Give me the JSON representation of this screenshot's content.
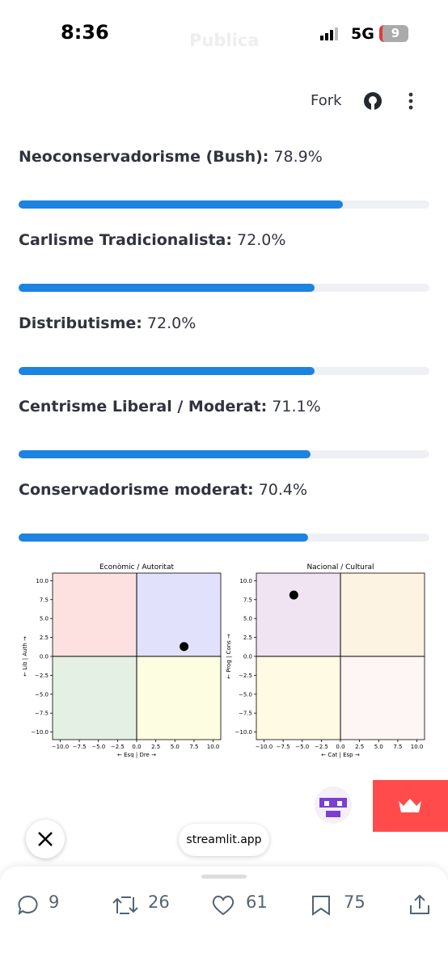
{
  "status_bar": {
    "time": "8:36",
    "network": "5G",
    "battery": "9"
  },
  "header": {
    "title": "Publica",
    "fork": "Fork"
  },
  "results": [
    {
      "name": "Neoconservadorisme (Bush):",
      "value": 78.9,
      "value_label": "78.9%"
    },
    {
      "name": "Carlisme Tradicionalista:",
      "value": 72.0,
      "value_label": "72.0%"
    },
    {
      "name": "Distributisme:",
      "value": 72.0,
      "value_label": "72.0%"
    },
    {
      "name": "Centrisme Liberal / Moderat:",
      "value": 71.1,
      "value_label": "71.1%"
    },
    {
      "name": "Conservadorisme moderat:",
      "value": 70.4,
      "value_label": "70.4%"
    }
  ],
  "progress_max": 100,
  "chart_data": [
    {
      "type": "scatter",
      "title": "Econòmic / Autoritat",
      "xlabel": "← Esq | Dre →",
      "ylabel": "← Lib | Auth →",
      "x": [
        6.2
      ],
      "values": [
        1.3
      ],
      "color": "#000000",
      "quadrants": [
        "#fde1e1",
        "#e1e1fb",
        "#e4f0e4",
        "#fdfde1"
      ],
      "xlim": [
        -11,
        11
      ],
      "ylim": [
        -11,
        11
      ],
      "xticks": [
        {
          "value": -10,
          "label": "−10.0"
        },
        {
          "value": -7.5,
          "label": "−7.5"
        },
        {
          "value": -5,
          "label": "−5.0"
        },
        {
          "value": -2.5,
          "label": "−2.5"
        },
        {
          "value": 0,
          "label": "0.0"
        },
        {
          "value": 2.5,
          "label": "2.5"
        },
        {
          "value": 5,
          "label": "5.0"
        },
        {
          "value": 7.5,
          "label": "7.5"
        },
        {
          "value": 10,
          "label": "10.0"
        }
      ],
      "yticks": [
        {
          "value": -10,
          "label": "−10.0"
        },
        {
          "value": -7.5,
          "label": "−7.5"
        },
        {
          "value": -5,
          "label": "−5.0"
        },
        {
          "value": -2.5,
          "label": "−2.5"
        },
        {
          "value": 0,
          "label": "0.0"
        },
        {
          "value": 2.5,
          "label": "2.5"
        },
        {
          "value": 5,
          "label": "5.0"
        },
        {
          "value": 7.5,
          "label": "7.5"
        },
        {
          "value": 10,
          "label": "10.0"
        }
      ]
    },
    {
      "type": "scatter",
      "title": "Nacional / Cultural",
      "xlabel": "← Cat | Esp →",
      "ylabel": "← Prog | Cons →",
      "x": [
        -6.1
      ],
      "values": [
        8.1
      ],
      "color": "#000000",
      "quadrants": [
        "#f0e3f2",
        "#fdf3e2",
        "#fefae3",
        "#fef5f5"
      ],
      "xlim": [
        -11,
        11
      ],
      "ylim": [
        -11,
        11
      ],
      "xticks": [
        {
          "value": -10,
          "label": "−10.0"
        },
        {
          "value": -7.5,
          "label": "−7.5"
        },
        {
          "value": -5,
          "label": "−5.0"
        },
        {
          "value": -2.5,
          "label": "−2.5"
        },
        {
          "value": 0,
          "label": "0.0"
        },
        {
          "value": 2.5,
          "label": "2.5"
        },
        {
          "value": 5,
          "label": "5.0"
        },
        {
          "value": 7.5,
          "label": "7.5"
        },
        {
          "value": 10,
          "label": "10.0"
        }
      ],
      "yticks": [
        {
          "value": -10,
          "label": "−10.0"
        },
        {
          "value": -7.5,
          "label": "−7.5"
        },
        {
          "value": -5,
          "label": "−5.0"
        },
        {
          "value": -2.5,
          "label": "−2.5"
        },
        {
          "value": 0,
          "label": "0.0"
        },
        {
          "value": 2.5,
          "label": "2.5"
        },
        {
          "value": 5,
          "label": "5.0"
        },
        {
          "value": 7.5,
          "label": "7.5"
        },
        {
          "value": 10,
          "label": "10.0"
        }
      ]
    }
  ],
  "footer": {
    "site": "streamlit.app",
    "replies": "9",
    "reposts": "26",
    "likes": "61",
    "bookmarks": "75"
  }
}
